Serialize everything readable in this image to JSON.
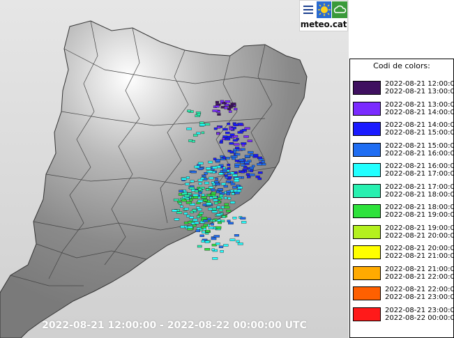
{
  "logo": {
    "brand": "meteo.cat",
    "icons": [
      "menu-lines-icon",
      "sun-icon",
      "cloud-icon"
    ]
  },
  "timerange": "2022-08-21 12:00:00 - 2022-08-22 00:00:00 UTC",
  "legend": {
    "title": "Codi de colors:",
    "entries": [
      {
        "from": "2022-08-21 12:00:00",
        "to": "2022-08-21 13:00:00",
        "color": "#3f1060"
      },
      {
        "from": "2022-08-21 13:00:00",
        "to": "2022-08-21 14:00:00",
        "color": "#7a2bff"
      },
      {
        "from": "2022-08-21 14:00:00",
        "to": "2022-08-21 15:00:00",
        "color": "#1a1aff"
      },
      {
        "from": "2022-08-21 15:00:00",
        "to": "2022-08-21 16:00:00",
        "color": "#1f6df2"
      },
      {
        "from": "2022-08-21 16:00:00",
        "to": "2022-08-21 17:00:00",
        "color": "#22ffff"
      },
      {
        "from": "2022-08-21 17:00:00",
        "to": "2022-08-21 18:00:00",
        "color": "#28f0b0"
      },
      {
        "from": "2022-08-21 18:00:00",
        "to": "2022-08-21 19:00:00",
        "color": "#2ee23c"
      },
      {
        "from": "2022-08-21 19:00:00",
        "to": "2022-08-21 20:00:00",
        "color": "#b4f01e"
      },
      {
        "from": "2022-08-21 20:00:00",
        "to": "2022-08-21 21:00:00",
        "color": "#ffff00"
      },
      {
        "from": "2022-08-21 21:00:00",
        "to": "2022-08-21 22:00:00",
        "color": "#ffaa00"
      },
      {
        "from": "2022-08-21 22:00:00",
        "to": "2022-08-21 23:00:00",
        "color": "#ff6000"
      },
      {
        "from": "2022-08-21 23:00:00",
        "to": "2022-08-22 00:00:00",
        "color": "#ff1a1a"
      }
    ]
  }
}
